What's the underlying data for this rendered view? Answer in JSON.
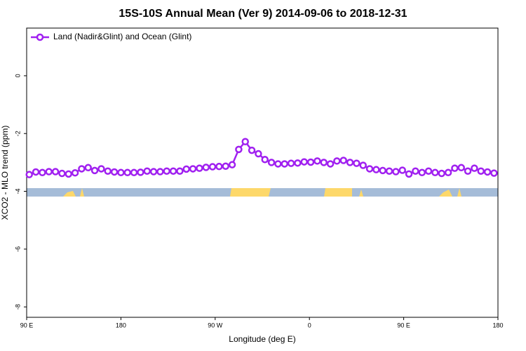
{
  "chart_data": {
    "type": "line",
    "title": "15S-10S Annual Mean (Ver 9)   2014-09-06 to 2018-12-31",
    "x_label": "Longitude (deg E)",
    "y_label": "XCO2 - MLO trend (ppm)",
    "xlim": [
      90,
      540
    ],
    "ylim": [
      -8.36,
      1.65
    ],
    "xticks": [
      {
        "value": 90,
        "label": "90 E"
      },
      {
        "value": 180,
        "label": "180"
      },
      {
        "value": 270,
        "label": "90 W"
      },
      {
        "value": 360,
        "label": "0"
      },
      {
        "value": 450,
        "label": "90 E"
      },
      {
        "value": 540,
        "label": "180"
      }
    ],
    "yticks": [
      -8,
      -6,
      -4,
      -2,
      0
    ],
    "legend_position": "top-left",
    "x": [
      92.5,
      98.75,
      105,
      111.25,
      117.5,
      123.75,
      130,
      136.25,
      142.5,
      148.75,
      155,
      161.25,
      167.5,
      173.75,
      180,
      186.25,
      192.5,
      198.75,
      205,
      211.25,
      217.5,
      223.75,
      230,
      236.25,
      242.5,
      248.75,
      255,
      261.25,
      267.5,
      273.75,
      280,
      286.25,
      292.5,
      298.75,
      305,
      311.25,
      317.5,
      323.75,
      330,
      336.25,
      342.5,
      348.75,
      355,
      361.25,
      367.5,
      373.75,
      380,
      386.25,
      392.5,
      398.75,
      405,
      411.25,
      417.5,
      423.75,
      430,
      436.25,
      442.5,
      448.75,
      455,
      461.25,
      467.5,
      473.75,
      480,
      486.25,
      492.5,
      498.75,
      505,
      511.25,
      517.5,
      523.75,
      530,
      536.25
    ],
    "series": [
      {
        "name": "Land (Nadir&Glint) and Ocean (Glint)",
        "color": "#a020f0",
        "values": [
          -3.42,
          -3.33,
          -3.35,
          -3.32,
          -3.32,
          -3.38,
          -3.4,
          -3.36,
          -3.22,
          -3.18,
          -3.28,
          -3.22,
          -3.3,
          -3.33,
          -3.35,
          -3.35,
          -3.35,
          -3.34,
          -3.3,
          -3.32,
          -3.32,
          -3.3,
          -3.3,
          -3.3,
          -3.23,
          -3.22,
          -3.2,
          -3.17,
          -3.15,
          -3.14,
          -3.13,
          -3.08,
          -2.55,
          -2.28,
          -2.58,
          -2.7,
          -2.9,
          -3.0,
          -3.05,
          -3.05,
          -3.03,
          -3.02,
          -2.98,
          -2.99,
          -2.95,
          -3.0,
          -3.05,
          -2.95,
          -2.93,
          -3.0,
          -3.03,
          -3.1,
          -3.22,
          -3.25,
          -3.28,
          -3.3,
          -3.32,
          -3.27,
          -3.4,
          -3.3,
          -3.35,
          -3.3,
          -3.35,
          -3.38,
          -3.35,
          -3.2,
          -3.18,
          -3.3,
          -3.2,
          -3.3,
          -3.33,
          -3.37
        ]
      }
    ]
  }
}
